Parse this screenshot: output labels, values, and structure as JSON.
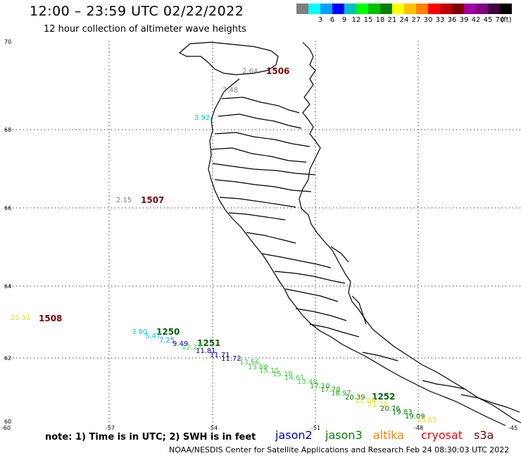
{
  "header": {
    "title": "12:00 – 23:59 UTC 02/22/2022",
    "subtitle": "12 hour collection of altimeter wave heights"
  },
  "legend": {
    "unit_label": "(ft)",
    "items": [
      {
        "color": "#808080",
        "label": ""
      },
      {
        "color": "#00ffff",
        "label": "3"
      },
      {
        "color": "#00a0ff",
        "label": "6"
      },
      {
        "color": "#0000ff",
        "label": "9"
      },
      {
        "color": "#00c0c0",
        "label": "12"
      },
      {
        "color": "#00ff00",
        "label": "15"
      },
      {
        "color": "#00c000",
        "label": "18"
      },
      {
        "color": "#008000",
        "label": "21"
      },
      {
        "color": "#ffff00",
        "label": "24"
      },
      {
        "color": "#ffc000",
        "label": "27"
      },
      {
        "color": "#ff8000",
        "label": "30"
      },
      {
        "color": "#ff0000",
        "label": "33"
      },
      {
        "color": "#c00000",
        "label": "36"
      },
      {
        "color": "#800000",
        "label": "39"
      },
      {
        "color": "#a000a0",
        "label": "42"
      },
      {
        "color": "#800080",
        "label": "45"
      },
      {
        "color": "#400040",
        "label": "70"
      },
      {
        "color": "#000000",
        "label": ""
      }
    ]
  },
  "axes": {
    "lat_ticks": [
      "70",
      "68",
      "66",
      "64",
      "62",
      "60"
    ],
    "lon_ticks": [
      "-60",
      "-57",
      "-54",
      "-51",
      "-48",
      "-45"
    ]
  },
  "passes": [
    {
      "id": "1506",
      "color": "#800000"
    },
    {
      "id": "1507",
      "color": "#800000"
    },
    {
      "id": "1508",
      "color": "#800000"
    },
    {
      "id": "1250",
      "color": "#006400"
    },
    {
      "id": "1251",
      "color": "#006400"
    },
    {
      "id": "1252",
      "color": "#006400"
    }
  ],
  "observations": [
    {
      "value": "2.64",
      "color": "#808080"
    },
    {
      "value": "2.48",
      "color": "#808080"
    },
    {
      "value": "3.92",
      "color": "#00d0d0"
    },
    {
      "value": "2.15",
      "color": "#808080"
    },
    {
      "value": "21.11",
      "color": "#e0e000"
    },
    {
      "value": "3.80",
      "color": "#00d0d0"
    },
    {
      "value": "5.47",
      "color": "#00d0d0"
    },
    {
      "value": "7.25",
      "color": "#00a0ff"
    },
    {
      "value": "9.49",
      "color": "#0000c0"
    },
    {
      "value": "12.27",
      "color": "#40e040"
    },
    {
      "value": "11.81",
      "color": "#0000c0"
    },
    {
      "value": "11.71",
      "color": "#0000c0"
    },
    {
      "value": "11.72",
      "color": "#0000c0"
    },
    {
      "value": "13.56",
      "color": "#40d040"
    },
    {
      "value": "13.89",
      "color": "#40d040"
    },
    {
      "value": "15.15",
      "color": "#40d040"
    },
    {
      "value": "15.18",
      "color": "#40d040"
    },
    {
      "value": "14.61",
      "color": "#40d040"
    },
    {
      "value": "13.48",
      "color": "#40d040"
    },
    {
      "value": "17.10",
      "color": "#20b020"
    },
    {
      "value": "17.78",
      "color": "#20b020"
    },
    {
      "value": "18.97",
      "color": "#20b020"
    },
    {
      "value": "20.39",
      "color": "#008000"
    },
    {
      "value": "22.04",
      "color": "#e0e000"
    },
    {
      "value": "21.22",
      "color": "#e0e000"
    },
    {
      "value": "20.76",
      "color": "#008000"
    },
    {
      "value": "19.83",
      "color": "#008000"
    },
    {
      "value": "19.09",
      "color": "#008000"
    },
    {
      "value": "23.65",
      "color": "#e0e000"
    }
  ],
  "footer": {
    "note": "note:  1) Time is in UTC;  2) SWH is in feet",
    "satellites": [
      {
        "name": "jason2",
        "color": "#0000c0"
      },
      {
        "name": "jason3",
        "color": "#008000"
      },
      {
        "name": "altika",
        "color": "#ff8000"
      },
      {
        "name": "cryosat",
        "color": "#ff0000"
      },
      {
        "name": "s3a",
        "color": "#800000"
      }
    ],
    "credit": "NOAA/NESDIS Center for Satellite Applications and Research      Feb 24 08:30:03 UTC 2022"
  }
}
